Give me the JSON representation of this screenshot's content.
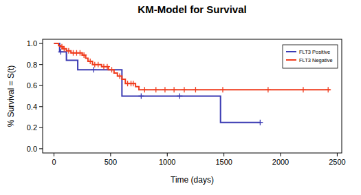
{
  "chart_data": {
    "type": "step",
    "title": "KM-Model for Survival",
    "x_label": "Time (days)",
    "y_label": "% Survival = S(t)",
    "xlim": [
      -100,
      2540
    ],
    "xticks": [
      0,
      500,
      1000,
      1500,
      2000,
      2500
    ],
    "ylim": [
      -0.04,
      1.04
    ],
    "yticks": [
      {
        "value": 0,
        "label": "0.0"
      },
      {
        "value": 0.2,
        "label": "0.2"
      },
      {
        "value": 0.4,
        "label": "0.4"
      },
      {
        "value": 0.6,
        "label": "0.6"
      },
      {
        "value": 0.8,
        "label": "0.8"
      },
      {
        "value": 1,
        "label": "1.0"
      }
    ],
    "grid": false,
    "legend": "top-right",
    "marker": "cross",
    "series": [
      {
        "name": "FLT3 Positive",
        "color": "#3b3bb3",
        "x": [
          0,
          50,
          110,
          210,
          600,
          1470,
          1820
        ],
        "values": [
          1,
          0.92,
          0.84,
          0.75,
          0.5,
          0.25,
          0.25
        ],
        "censor_x": [
          60,
          350,
          770,
          1110,
          1820
        ],
        "censor_y": [
          0.92,
          0.75,
          0.5,
          0.5,
          0.25
        ]
      },
      {
        "name": "FLT3 Negative",
        "color": "#f03c1e",
        "x": [
          0,
          40,
          60,
          80,
          110,
          150,
          250,
          280,
          300,
          340,
          420,
          480,
          530,
          560,
          600,
          630,
          720,
          750,
          2440
        ],
        "values": [
          1,
          0.98,
          0.97,
          0.95,
          0.93,
          0.91,
          0.89,
          0.86,
          0.83,
          0.8,
          0.78,
          0.75,
          0.72,
          0.69,
          0.66,
          0.62,
          0.59,
          0.56,
          0.56
        ],
        "censor_x": [
          70,
          90,
          130,
          170,
          200,
          230,
          265,
          320,
          360,
          390,
          440,
          470,
          510,
          580,
          650,
          680,
          700,
          800,
          900,
          980,
          1060,
          1150,
          1250,
          1490,
          1890,
          2200,
          2420
        ],
        "censor_y": [
          0.97,
          0.95,
          0.93,
          0.91,
          0.91,
          0.91,
          0.89,
          0.83,
          0.8,
          0.8,
          0.78,
          0.78,
          0.75,
          0.69,
          0.62,
          0.62,
          0.62,
          0.56,
          0.56,
          0.56,
          0.56,
          0.56,
          0.56,
          0.56,
          0.56,
          0.56,
          0.56
        ]
      }
    ]
  }
}
